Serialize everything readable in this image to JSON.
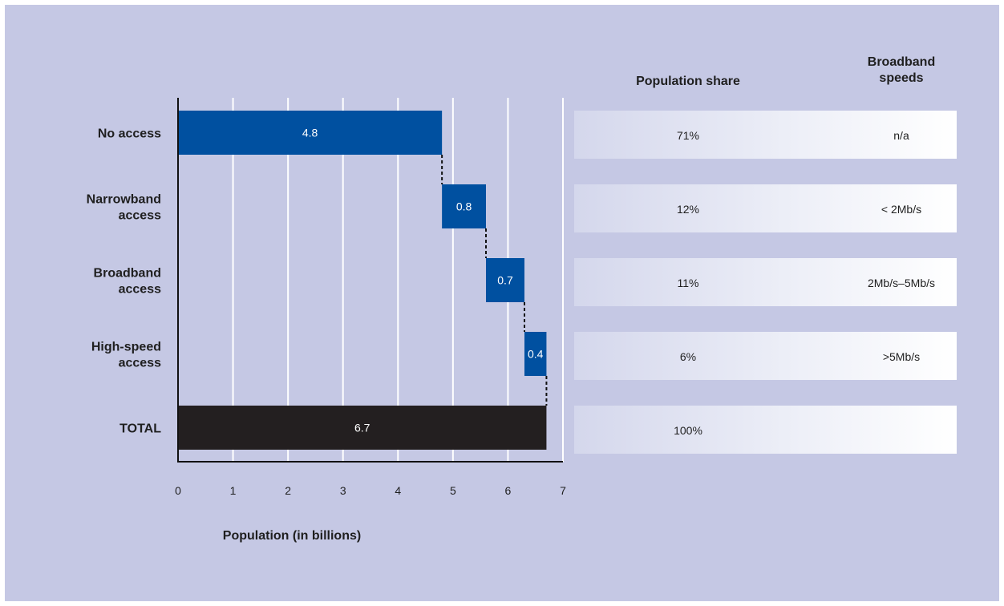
{
  "chart_data": {
    "type": "bar",
    "categories": [
      "No access",
      "Narrowband access",
      "Broadband access",
      "High-speed access",
      "TOTAL"
    ],
    "category_lines": [
      [
        "No access"
      ],
      [
        "Narrowband",
        "access"
      ],
      [
        "Broadband",
        "access"
      ],
      [
        "High-speed",
        "access"
      ],
      [
        "TOTAL"
      ]
    ],
    "bars": [
      {
        "start": 0,
        "value": 4.8,
        "label": "4.8"
      },
      {
        "start": 4.8,
        "value": 0.8,
        "label": "0.8"
      },
      {
        "start": 5.6,
        "value": 0.7,
        "label": "0.7"
      },
      {
        "start": 6.3,
        "value": 0.4,
        "label": "0.4"
      },
      {
        "start": 0,
        "value": 6.7,
        "label": "6.7"
      }
    ],
    "xlabel": "Population (in billions)",
    "xlim": [
      0,
      7
    ],
    "xticks": [
      "0",
      "1",
      "2",
      "3",
      "4",
      "5",
      "6",
      "7"
    ],
    "grid": true,
    "colors": {
      "segment": "#0050a0",
      "total": "#231f20",
      "gridline": "#ffffff"
    }
  },
  "table": {
    "headers": {
      "share": [
        "Population share"
      ],
      "speeds": [
        "Broadband",
        "speeds"
      ]
    },
    "rows": [
      {
        "share": "71%",
        "speed": "n/a"
      },
      {
        "share": "12%",
        "speed": "< 2Mb/s"
      },
      {
        "share": "11%",
        "speed": "2Mb/s–5Mb/s"
      },
      {
        "share": "6%",
        "speed": ">5Mb/s"
      },
      {
        "share": "100%",
        "speed": ""
      }
    ]
  }
}
